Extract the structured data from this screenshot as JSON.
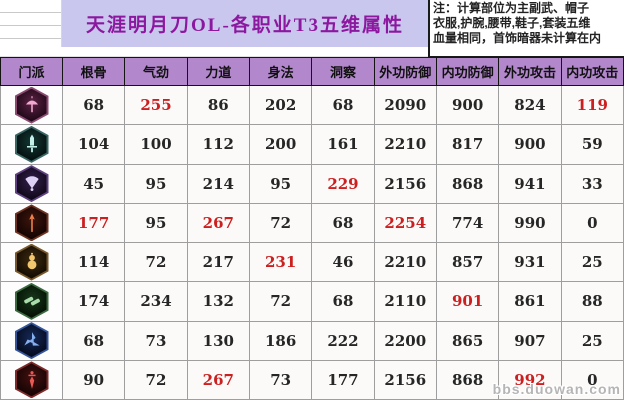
{
  "title": "天涯明月刀OL-各职业T3五维属性",
  "note_lines": [
    "注：计算部位为主副武、帽子",
    "衣服,护腕,腰带,鞋子,套装五维",
    "血量相同，首饰暗器未计算在内"
  ],
  "watermark": "bbs.duowan.com",
  "colors": {
    "title_bg": "#c9c7ee",
    "title_text": "#8d18a0",
    "header_bg": "#b287cc",
    "highlight_red": "#cc2020",
    "grid_line": "#9e9e9e"
  },
  "table": {
    "headers": [
      "门派",
      "根骨",
      "气劲",
      "力道",
      "身法",
      "洞察",
      "外功防御",
      "内功防御",
      "外功攻击",
      "内功攻击"
    ],
    "rows": [
      {
        "icon": "umbrella-class-icon",
        "hex_edge": "#8a4a70",
        "hex_mid": "#5a2344",
        "hex_bg": "#1f0717",
        "glyph_color": "#f2aad2",
        "values": [
          68,
          255,
          86,
          202,
          68,
          2090,
          900,
          824,
          119
        ],
        "red": [
          1,
          8
        ]
      },
      {
        "icon": "sword-class-icon",
        "hex_edge": "#3a6663",
        "hex_mid": "#133734",
        "hex_bg": "#04100f",
        "glyph_color": "#c3f1ea",
        "values": [
          104,
          100,
          112,
          200,
          161,
          2210,
          817,
          900,
          59
        ],
        "red": []
      },
      {
        "icon": "fan-class-icon",
        "hex_edge": "#5d4180",
        "hex_mid": "#33204d",
        "hex_bg": "#100818",
        "glyph_color": "#ddd2f5",
        "values": [
          45,
          95,
          214,
          95,
          229,
          2156,
          868,
          941,
          33
        ],
        "red": [
          4
        ]
      },
      {
        "icon": "spear-class-icon",
        "hex_edge": "#6e3220",
        "hex_mid": "#3c150b",
        "hex_bg": "#140403",
        "glyph_color": "#f0824e",
        "values": [
          177,
          95,
          267,
          72,
          68,
          2254,
          774,
          990,
          0
        ],
        "red": [
          0,
          2,
          5
        ]
      },
      {
        "icon": "gourd-class-icon",
        "hex_edge": "#77582a",
        "hex_mid": "#3d2a0e",
        "hex_bg": "#120b02",
        "glyph_color": "#f2c66e",
        "values": [
          114,
          72,
          217,
          231,
          46,
          2210,
          857,
          931,
          25
        ],
        "red": [
          3
        ]
      },
      {
        "icon": "gauntlet-class-icon",
        "hex_edge": "#3c6a40",
        "hex_mid": "#17381b",
        "hex_bg": "#041004",
        "glyph_color": "#a8dcaa",
        "values": [
          174,
          234,
          132,
          72,
          68,
          2110,
          901,
          861,
          88
        ],
        "red": [
          6
        ]
      },
      {
        "icon": "shuriken-class-icon",
        "hex_edge": "#35559a",
        "hex_mid": "#152a58",
        "hex_bg": "#050b1e",
        "glyph_color": "#86b0ee",
        "values": [
          68,
          73,
          130,
          186,
          222,
          2200,
          865,
          907,
          25
        ],
        "red": []
      },
      {
        "icon": "dagger-class-icon",
        "hex_edge": "#7e2a2a",
        "hex_mid": "#431010",
        "hex_bg": "#160404",
        "glyph_color": "#ea5a55",
        "values": [
          90,
          72,
          267,
          73,
          177,
          2156,
          868,
          992,
          0
        ],
        "red": [
          2,
          7
        ]
      }
    ]
  }
}
